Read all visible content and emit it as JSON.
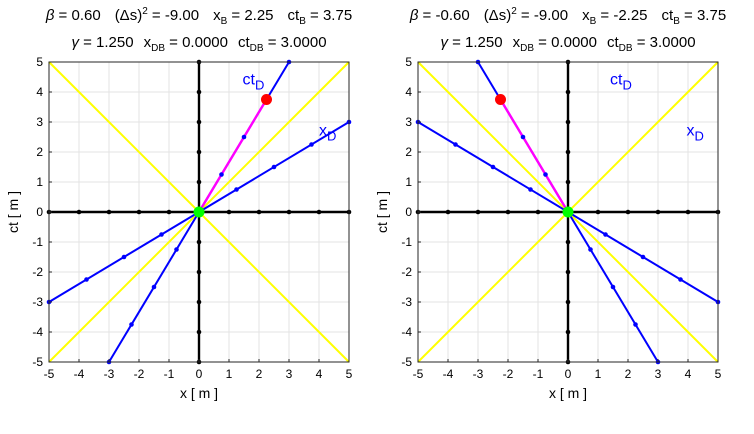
{
  "chart_data": [
    {
      "type": "line",
      "title_line1": {
        "beta_sym": "β",
        "beta_val": " = 0.60",
        "ds_pre": "(Δs)",
        "ds_sup": "2",
        "ds_val": " = -9.00",
        "xb_pre": "x",
        "xb_sub": "B",
        "xb_val": " = 2.25",
        "ctb_pre": "ct",
        "ctb_sub": "B",
        "ctb_val": " = 3.75"
      },
      "title_line2": {
        "gamma_sym": "γ",
        "gamma_val": " = 1.250",
        "xdb_pre": "x",
        "xdb_sub": "DB",
        "xdb_val": " = 0.0000",
        "ctdb_pre": "ct",
        "ctdb_sub": "DB",
        "ctdb_val": " = 3.0000"
      },
      "xlabel": "x  [ m ]",
      "ylabel": "ct  [ m ]",
      "xlim": [
        -5,
        5
      ],
      "ylim": [
        -5,
        5
      ],
      "xticks": [
        -5,
        -4,
        -3,
        -2,
        -1,
        0,
        1,
        2,
        3,
        4,
        5
      ],
      "yticks": [
        -5,
        -4,
        -3,
        -2,
        -1,
        0,
        1,
        2,
        3,
        4,
        5
      ],
      "grid": true,
      "series": [
        {
          "role": "light-cone-1",
          "color": "#ffff00",
          "x": [
            -5,
            5
          ],
          "y": [
            -5,
            5
          ],
          "markers": []
        },
        {
          "role": "light-cone-2",
          "color": "#ffff00",
          "x": [
            -5,
            5
          ],
          "y": [
            5,
            -5
          ],
          "markers": []
        },
        {
          "role": "x-axis",
          "color": "#000000",
          "x": [
            -5,
            5
          ],
          "y": [
            0,
            0
          ],
          "markers": [
            [
              -5,
              0
            ],
            [
              -4,
              0
            ],
            [
              -3,
              0
            ],
            [
              -2,
              0
            ],
            [
              -1,
              0
            ],
            [
              0,
              0
            ],
            [
              1,
              0
            ],
            [
              2,
              0
            ],
            [
              3,
              0
            ],
            [
              4,
              0
            ],
            [
              5,
              0
            ]
          ]
        },
        {
          "role": "ct-axis",
          "color": "#000000",
          "x": [
            0,
            0
          ],
          "y": [
            -5,
            5
          ],
          "markers": [
            [
              0,
              -5
            ],
            [
              0,
              -4
            ],
            [
              0,
              -3
            ],
            [
              0,
              -2
            ],
            [
              0,
              -1
            ],
            [
              0,
              0
            ],
            [
              0,
              1
            ],
            [
              0,
              2
            ],
            [
              0,
              3
            ],
            [
              0,
              4
            ],
            [
              0,
              5
            ]
          ]
        },
        {
          "role": "ctD-axis",
          "color": "#0000ff",
          "x": [
            -3,
            3
          ],
          "y": [
            -5,
            5
          ],
          "markers": [
            [
              -3,
              -5
            ],
            [
              -2.25,
              -3.75
            ],
            [
              -1.5,
              -2.5
            ],
            [
              -0.75,
              -1.25
            ],
            [
              0,
              0
            ],
            [
              0.75,
              1.25
            ],
            [
              1.5,
              2.5
            ],
            [
              2.25,
              3.75
            ],
            [
              3,
              5
            ]
          ]
        },
        {
          "role": "xD-axis",
          "color": "#0000ff",
          "x": [
            -5,
            5
          ],
          "y": [
            -3,
            3
          ],
          "markers": [
            [
              -5,
              -3
            ],
            [
              -3.75,
              -2.25
            ],
            [
              -2.5,
              -1.5
            ],
            [
              -1.25,
              -0.75
            ],
            [
              0,
              0
            ],
            [
              1.25,
              0.75
            ],
            [
              2.5,
              1.5
            ],
            [
              3.75,
              2.25
            ],
            [
              5,
              3
            ]
          ]
        },
        {
          "role": "worldline-segment",
          "color": "#ff00ff",
          "x": [
            0,
            2.25
          ],
          "y": [
            0,
            3.75
          ],
          "markers": []
        }
      ],
      "points": [
        {
          "role": "event-B",
          "x": 2.25,
          "y": 3.75,
          "color": "#ff0000"
        },
        {
          "role": "origin",
          "x": 0,
          "y": 0,
          "color": "#00ff00"
        }
      ],
      "annotations": [
        {
          "role": "ctD-label",
          "base": "ct",
          "sub": "D",
          "x": 1.45,
          "y": 4.25,
          "color": "#0000ff"
        },
        {
          "role": "xD-label",
          "base": "x",
          "sub": "D",
          "x": 4.0,
          "y": 2.55,
          "color": "#0000ff"
        }
      ]
    },
    {
      "type": "line",
      "title_line1": {
        "beta_sym": "β",
        "beta_val": " = -0.60",
        "ds_pre": "(Δs)",
        "ds_sup": "2",
        "ds_val": " = -9.00",
        "xb_pre": "x",
        "xb_sub": "B",
        "xb_val": " = -2.25",
        "ctb_pre": "ct",
        "ctb_sub": "B",
        "ctb_val": " = 3.75"
      },
      "title_line2": {
        "gamma_sym": "γ",
        "gamma_val": " = 1.250",
        "xdb_pre": "x",
        "xdb_sub": "DB",
        "xdb_val": " = 0.0000",
        "ctdb_pre": "ct",
        "ctdb_sub": "DB",
        "ctdb_val": " = 3.0000"
      },
      "xlabel": "x  [ m ]",
      "ylabel": "ct  [ m ]",
      "xlim": [
        -5,
        5
      ],
      "ylim": [
        -5,
        5
      ],
      "xticks": [
        -5,
        -4,
        -3,
        -2,
        -1,
        0,
        1,
        2,
        3,
        4,
        5
      ],
      "yticks": [
        -5,
        -4,
        -3,
        -2,
        -1,
        0,
        1,
        2,
        3,
        4,
        5
      ],
      "grid": true,
      "series": [
        {
          "role": "light-cone-1",
          "color": "#ffff00",
          "x": [
            -5,
            5
          ],
          "y": [
            -5,
            5
          ],
          "markers": []
        },
        {
          "role": "light-cone-2",
          "color": "#ffff00",
          "x": [
            -5,
            5
          ],
          "y": [
            5,
            -5
          ],
          "markers": []
        },
        {
          "role": "x-axis",
          "color": "#000000",
          "x": [
            -5,
            5
          ],
          "y": [
            0,
            0
          ],
          "markers": [
            [
              -5,
              0
            ],
            [
              -4,
              0
            ],
            [
              -3,
              0
            ],
            [
              -2,
              0
            ],
            [
              -1,
              0
            ],
            [
              0,
              0
            ],
            [
              1,
              0
            ],
            [
              2,
              0
            ],
            [
              3,
              0
            ],
            [
              4,
              0
            ],
            [
              5,
              0
            ]
          ]
        },
        {
          "role": "ct-axis",
          "color": "#000000",
          "x": [
            0,
            0
          ],
          "y": [
            -5,
            5
          ],
          "markers": [
            [
              0,
              -5
            ],
            [
              0,
              -4
            ],
            [
              0,
              -3
            ],
            [
              0,
              -2
            ],
            [
              0,
              -1
            ],
            [
              0,
              0
            ],
            [
              0,
              1
            ],
            [
              0,
              2
            ],
            [
              0,
              3
            ],
            [
              0,
              4
            ],
            [
              0,
              5
            ]
          ]
        },
        {
          "role": "ctD-axis",
          "color": "#0000ff",
          "x": [
            -3,
            3
          ],
          "y": [
            5,
            -5
          ],
          "markers": [
            [
              -3,
              5
            ],
            [
              -2.25,
              3.75
            ],
            [
              -1.5,
              2.5
            ],
            [
              -0.75,
              1.25
            ],
            [
              0,
              0
            ],
            [
              0.75,
              -1.25
            ],
            [
              1.5,
              -2.5
            ],
            [
              2.25,
              -3.75
            ],
            [
              3,
              -5
            ]
          ]
        },
        {
          "role": "xD-axis",
          "color": "#0000ff",
          "x": [
            -5,
            5
          ],
          "y": [
            3,
            -3
          ],
          "markers": [
            [
              -5,
              3
            ],
            [
              -3.75,
              2.25
            ],
            [
              -2.5,
              1.5
            ],
            [
              -1.25,
              0.75
            ],
            [
              0,
              0
            ],
            [
              1.25,
              -0.75
            ],
            [
              2.5,
              -1.5
            ],
            [
              3.75,
              -2.25
            ],
            [
              5,
              -3
            ]
          ]
        },
        {
          "role": "worldline-segment",
          "color": "#ff00ff",
          "x": [
            0,
            -2.25
          ],
          "y": [
            0,
            3.75
          ],
          "markers": []
        }
      ],
      "points": [
        {
          "role": "event-B",
          "x": -2.25,
          "y": 3.75,
          "color": "#ff0000"
        },
        {
          "role": "origin",
          "x": 0,
          "y": 0,
          "color": "#00ff00"
        }
      ],
      "annotations": [
        {
          "role": "ctD-label",
          "base": "ct",
          "sub": "D",
          "x": 1.4,
          "y": 4.25,
          "color": "#0000ff"
        },
        {
          "role": "xD-label",
          "base": "x",
          "sub": "D",
          "x": 3.95,
          "y": 2.55,
          "color": "#0000ff"
        }
      ]
    }
  ]
}
